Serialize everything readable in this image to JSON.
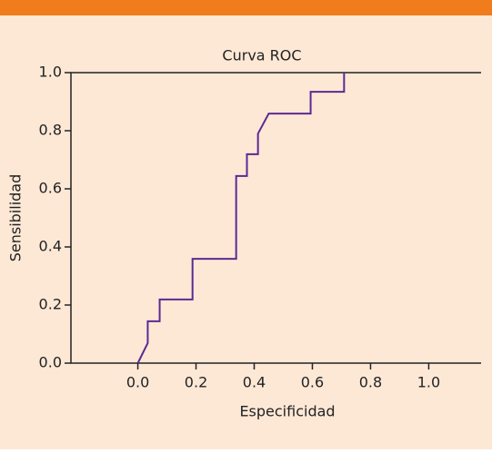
{
  "chart_data": {
    "type": "line",
    "title": "Curva ROC",
    "x_label": "Especificidad",
    "y_label": "Sensibilidad",
    "series": [
      {
        "name": "ROC",
        "color": "#5b2a91",
        "x": [
          0,
          0.034,
          0.034,
          0.075,
          0.075,
          0.188,
          0.188,
          0.338,
          0.338,
          0.375,
          0.375,
          0.413,
          0.413,
          0.45,
          0.594,
          0.594,
          0.709,
          0.709
        ],
        "values": [
          0,
          0.069,
          0.144,
          0.144,
          0.219,
          0.219,
          0.359,
          0.359,
          0.644,
          0.644,
          0.719,
          0.719,
          0.79,
          0.859,
          0.859,
          0.934,
          0.934,
          1.0
        ]
      }
    ],
    "xlim": [
      -0.23,
      1.18
    ],
    "ylim": [
      0,
      1
    ],
    "xticks": [
      {
        "value": 0,
        "label": "0.0"
      },
      {
        "value": 0.2,
        "label": "0.2"
      },
      {
        "value": 0.4,
        "label": "0.4"
      },
      {
        "value": 0.6,
        "label": "0.6"
      },
      {
        "value": 0.8,
        "label": "0.8"
      },
      {
        "value": 1,
        "label": "1.0"
      }
    ],
    "yticks": [
      {
        "value": 0,
        "label": "0.0"
      },
      {
        "value": 0.2,
        "label": "0.2"
      },
      {
        "value": 0.4,
        "label": "0.4"
      },
      {
        "value": 0.6,
        "label": "0.6"
      },
      {
        "value": 0.8,
        "label": "0.8"
      },
      {
        "value": 1,
        "label": "1.0"
      }
    ],
    "grid": false
  }
}
